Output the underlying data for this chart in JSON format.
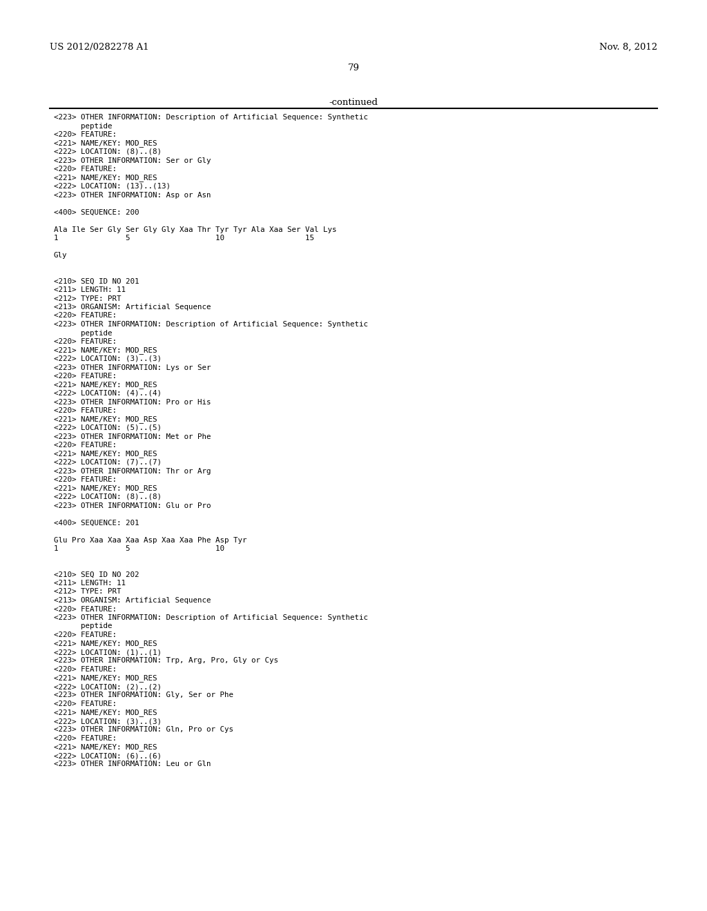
{
  "header_left": "US 2012/0282278 A1",
  "header_right": "Nov. 8, 2012",
  "page_number": "79",
  "continued_text": "-continued",
  "background_color": "#ffffff",
  "text_color": "#000000",
  "header_fontsize": 9.5,
  "mono_font_size": 7.8,
  "content_lines": [
    "<223> OTHER INFORMATION: Description of Artificial Sequence: Synthetic",
    "      peptide",
    "<220> FEATURE:",
    "<221> NAME/KEY: MOD_RES",
    "<222> LOCATION: (8)..(8)",
    "<223> OTHER INFORMATION: Ser or Gly",
    "<220> FEATURE:",
    "<221> NAME/KEY: MOD_RES",
    "<222> LOCATION: (13)..(13)",
    "<223> OTHER INFORMATION: Asp or Asn",
    "",
    "<400> SEQUENCE: 200",
    "",
    "Ala Ile Ser Gly Ser Gly Gly Xaa Thr Tyr Tyr Ala Xaa Ser Val Lys",
    "1               5                   10                  15",
    "",
    "Gly",
    "",
    "",
    "<210> SEQ ID NO 201",
    "<211> LENGTH: 11",
    "<212> TYPE: PRT",
    "<213> ORGANISM: Artificial Sequence",
    "<220> FEATURE:",
    "<223> OTHER INFORMATION: Description of Artificial Sequence: Synthetic",
    "      peptide",
    "<220> FEATURE:",
    "<221> NAME/KEY: MOD_RES",
    "<222> LOCATION: (3)..(3)",
    "<223> OTHER INFORMATION: Lys or Ser",
    "<220> FEATURE:",
    "<221> NAME/KEY: MOD_RES",
    "<222> LOCATION: (4)..(4)",
    "<223> OTHER INFORMATION: Pro or His",
    "<220> FEATURE:",
    "<221> NAME/KEY: MOD_RES",
    "<222> LOCATION: (5)..(5)",
    "<223> OTHER INFORMATION: Met or Phe",
    "<220> FEATURE:",
    "<221> NAME/KEY: MOD_RES",
    "<222> LOCATION: (7)..(7)",
    "<223> OTHER INFORMATION: Thr or Arg",
    "<220> FEATURE:",
    "<221> NAME/KEY: MOD_RES",
    "<222> LOCATION: (8)..(8)",
    "<223> OTHER INFORMATION: Glu or Pro",
    "",
    "<400> SEQUENCE: 201",
    "",
    "Glu Pro Xaa Xaa Xaa Asp Xaa Xaa Phe Asp Tyr",
    "1               5                   10",
    "",
    "",
    "<210> SEQ ID NO 202",
    "<211> LENGTH: 11",
    "<212> TYPE: PRT",
    "<213> ORGANISM: Artificial Sequence",
    "<220> FEATURE:",
    "<223> OTHER INFORMATION: Description of Artificial Sequence: Synthetic",
    "      peptide",
    "<220> FEATURE:",
    "<221> NAME/KEY: MOD_RES",
    "<222> LOCATION: (1)..(1)",
    "<223> OTHER INFORMATION: Trp, Arg, Pro, Gly or Cys",
    "<220> FEATURE:",
    "<221> NAME/KEY: MOD_RES",
    "<222> LOCATION: (2)..(2)",
    "<223> OTHER INFORMATION: Gly, Ser or Phe",
    "<220> FEATURE:",
    "<221> NAME/KEY: MOD_RES",
    "<222> LOCATION: (3)..(3)",
    "<223> OTHER INFORMATION: Gln, Pro or Cys",
    "<220> FEATURE:",
    "<221> NAME/KEY: MOD_RES",
    "<222> LOCATION: (6)..(6)",
    "<223> OTHER INFORMATION: Leu or Gln"
  ]
}
